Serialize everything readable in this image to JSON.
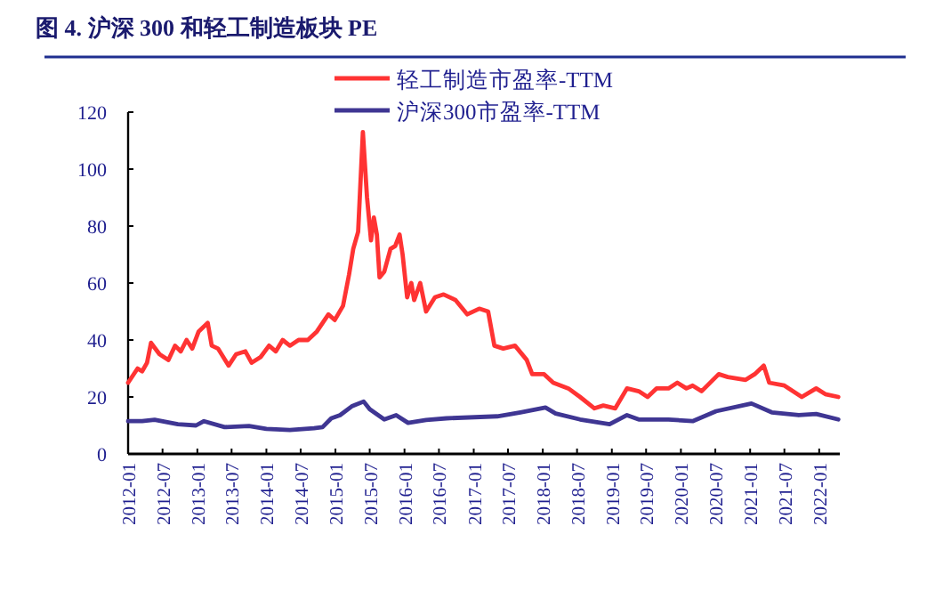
{
  "chart_data": {
    "type": "line",
    "title": "图 4. 沪深 300 和轻工制造板块 PE",
    "legend": "top",
    "grid": false,
    "x": [
      "2012-01-01",
      "2012-02-20",
      "2012-03-15",
      "2012-04-10",
      "2012-05-01",
      "2012-06-15",
      "2012-08-01",
      "2012-09-05",
      "2012-10-05",
      "2012-11-05",
      "2012-12-05",
      "2013-01-08",
      "2013-02-25",
      "2013-03-18",
      "2013-04-20",
      "2013-06-15",
      "2013-07-25",
      "2013-09-12",
      "2013-10-15",
      "2013-12-01",
      "2014-01-15",
      "2014-02-20",
      "2014-03-28",
      "2014-05-05",
      "2014-06-20",
      "2014-08-08",
      "2014-09-25",
      "2014-10-25",
      "2014-11-25",
      "2014-12-28",
      "2015-02-10",
      "2015-03-14",
      "2015-04-05",
      "2015-05-01",
      "2015-05-26",
      "2015-06-17",
      "2015-07-08",
      "2015-07-23",
      "2015-08-08",
      "2015-08-22",
      "2015-09-16",
      "2015-10-19",
      "2015-11-13",
      "2015-12-06",
      "2015-12-22",
      "2016-01-15",
      "2016-02-06",
      "2016-02-21",
      "2016-03-24",
      "2016-04-24",
      "2016-06-10",
      "2016-07-26",
      "2016-09-27",
      "2016-11-28",
      "2017-01-30",
      "2017-03-18",
      "2017-04-20",
      "2017-06-06",
      "2017-08-07",
      "2017-10-08",
      "2017-11-06",
      "2018-01-08",
      "2018-02-25",
      "2018-05-16",
      "2018-07-17",
      "2018-10-01",
      "2018-11-17",
      "2019-01-19",
      "2019-03-22",
      "2019-05-23",
      "2019-07-09",
      "2019-08-25",
      "2019-10-27",
      "2019-12-13",
      "2020-01-30",
      "2020-03-03",
      "2020-04-19",
      "2020-07-19",
      "2020-09-05",
      "2020-12-08",
      "2021-01-25",
      "2021-03-14",
      "2021-04-12",
      "2021-07-01",
      "2021-10-01",
      "2021-12-16",
      "2022-02-02",
      "2022-04-12"
    ],
    "series": [
      {
        "name": "轻工制造市盈率-TTM",
        "color": "#ff3333",
        "values": [
          25,
          30,
          29,
          32,
          39,
          35,
          33,
          38,
          36,
          40,
          37,
          43,
          46,
          38,
          37,
          31,
          35,
          36,
          32,
          34,
          38,
          36,
          40,
          38,
          40,
          40,
          43,
          46,
          49,
          47,
          52,
          63,
          72,
          78,
          113,
          90,
          75,
          83,
          77,
          62,
          64,
          72,
          73,
          77,
          70,
          55,
          60,
          54,
          60,
          50,
          55,
          56,
          54,
          49,
          51,
          50,
          38,
          37,
          38,
          33,
          28,
          28,
          25,
          23,
          20,
          16,
          17,
          16,
          23,
          22,
          20,
          23,
          23,
          25,
          23,
          24,
          22,
          28,
          27,
          26,
          28,
          31,
          25,
          24,
          20,
          23,
          21,
          20
        ]
      },
      {
        "name": "沪深300市盈率-TTM",
        "color": "#3f3693",
        "x": [
          "2012-01-01",
          "2012-03-15",
          "2012-05-20",
          "2012-09-20",
          "2012-12-25",
          "2013-02-05",
          "2013-05-25",
          "2013-10-01",
          "2014-01-01",
          "2014-05-05",
          "2014-09-10",
          "2014-10-25",
          "2014-12-10",
          "2015-01-25",
          "2015-03-28",
          "2015-05-30",
          "2015-07-01",
          "2015-09-16",
          "2015-11-18",
          "2016-01-20",
          "2016-04-24",
          "2016-08-10",
          "2017-05-05",
          "2017-09-05",
          "2018-01-15",
          "2018-03-10",
          "2018-07-17",
          "2018-12-20",
          "2019-03-22",
          "2019-05-23",
          "2019-10-27",
          "2020-03-03",
          "2020-07-05",
          "2021-01-08",
          "2021-04-25",
          "2021-09-15",
          "2021-12-16",
          "2022-04-12"
        ],
        "values": [
          11.5,
          11.5,
          12,
          10.4,
          10,
          11.5,
          9.4,
          9.8,
          8.8,
          8.4,
          9,
          9.4,
          12.5,
          13.6,
          16.7,
          18.4,
          15.7,
          12.1,
          13.6,
          10.9,
          11.9,
          12.5,
          13.2,
          14.6,
          16.3,
          14.2,
          12.1,
          10.4,
          13.6,
          12.1,
          12.1,
          11.5,
          15,
          17.7,
          14.6,
          13.6,
          14,
          12.1
        ]
      }
    ],
    "xlim": [
      "2012-01-01",
      "2022-04-20"
    ],
    "xticks": [
      "2012-01",
      "2012-07",
      "2013-01",
      "2013-07",
      "2014-01",
      "2014-07",
      "2015-01",
      "2015-07",
      "2016-01",
      "2016-07",
      "2017-01",
      "2017-07",
      "2018-01",
      "2018-07",
      "2019-01",
      "2019-07",
      "2020-01",
      "2020-07",
      "2021-01",
      "2021-07",
      "2022-01"
    ],
    "ylim": [
      0,
      120
    ],
    "yticks": [
      0,
      20,
      40,
      60,
      80,
      100,
      120
    ],
    "line_style": "solid",
    "marker": "none"
  }
}
